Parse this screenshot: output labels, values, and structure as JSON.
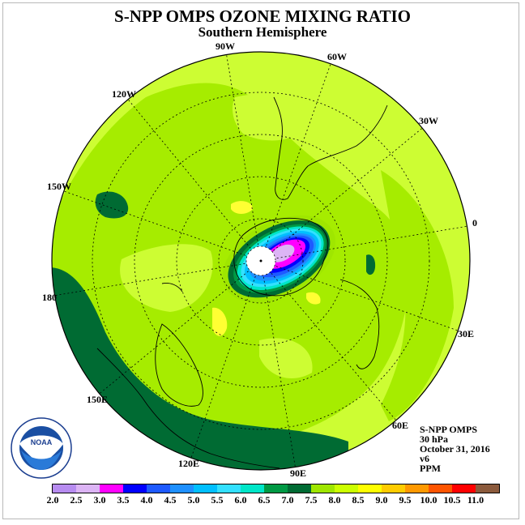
{
  "title": "S-NPP OMPS OZONE MIXING RATIO",
  "subtitle": "Southern Hemisphere",
  "longitude_labels": [
    "90W",
    "60W",
    "30W",
    "0",
    "30E",
    "60E",
    "90E",
    "120E",
    "150E",
    "180",
    "150W",
    "120W"
  ],
  "info": {
    "instrument": "S-NPP OMPS",
    "level": "30 hPa",
    "date": "October 31, 2016",
    "version": "v6",
    "units": "PPM"
  },
  "logo_text": "NOAA",
  "colorbar": {
    "ticks": [
      "2.0",
      "2.5",
      "3.0",
      "3.5",
      "4.0",
      "4.5",
      "5.0",
      "5.5",
      "6.0",
      "6.5",
      "7.0",
      "7.5",
      "8.0",
      "8.5",
      "9.0",
      "9.5",
      "10.0",
      "10.5",
      "11.0"
    ],
    "colors": [
      "#b78cf0",
      "#dcb4f5",
      "#ff00ff",
      "#0000ff",
      "#1e5aff",
      "#1e90ff",
      "#00bfff",
      "#33e0ff",
      "#00e6c8",
      "#009944",
      "#006b33",
      "#9fe600",
      "#ccff00",
      "#ffff00",
      "#ffcc00",
      "#ff9900",
      "#ff5500",
      "#ff0000",
      "#8b5a3c"
    ]
  },
  "colors": {
    "background_field": "#a6ec00",
    "light_field": "#cdfd33",
    "dark_green": "#006b33",
    "mid_green": "#009944",
    "yellow": "#ffff33",
    "land_outline": "#000000",
    "pole_mask": "#ffffff"
  }
}
